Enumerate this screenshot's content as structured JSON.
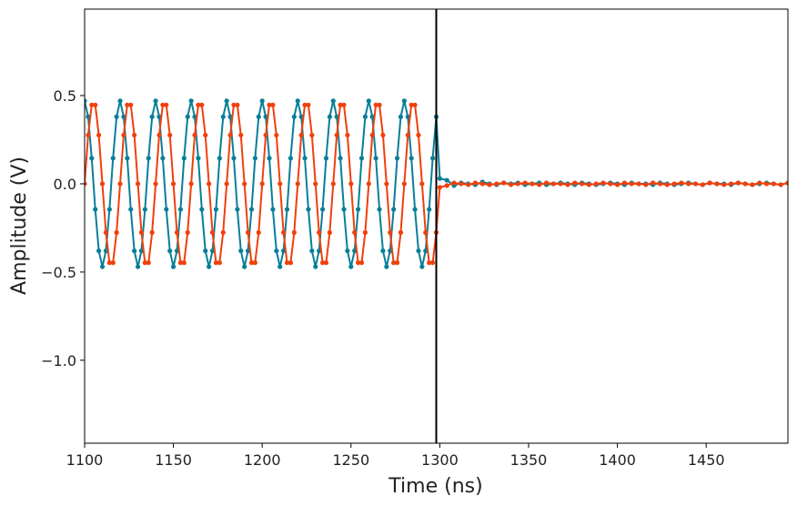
{
  "chart_data": {
    "type": "line",
    "xlabel": "Time (ns)",
    "ylabel": "Amplitude (V)",
    "xlim": [
      1100,
      1496
    ],
    "ylim": [
      -1.47,
      0.99
    ],
    "xticks": [
      1100,
      1150,
      1200,
      1250,
      1300,
      1350,
      1400,
      1450
    ],
    "yticks": [
      0.5,
      {
        "value": 0,
        "label": "0.0"
      },
      {
        "value": -0.5,
        "label": "−0.5"
      },
      {
        "value": -1,
        "label": "−1.0"
      }
    ],
    "grid": false,
    "vline": 1298,
    "x": [
      1100,
      1102,
      1104,
      1106,
      1108,
      1110,
      1112,
      1114,
      1116,
      1118,
      1120,
      1122,
      1124,
      1126,
      1128,
      1130,
      1132,
      1134,
      1136,
      1138,
      1140,
      1142,
      1144,
      1146,
      1148,
      1150,
      1152,
      1154,
      1156,
      1158,
      1160,
      1162,
      1164,
      1166,
      1168,
      1170,
      1172,
      1174,
      1176,
      1178,
      1180,
      1182,
      1184,
      1186,
      1188,
      1190,
      1192,
      1194,
      1196,
      1198,
      1200,
      1202,
      1204,
      1206,
      1208,
      1210,
      1212,
      1214,
      1216,
      1218,
      1220,
      1222,
      1224,
      1226,
      1228,
      1230,
      1232,
      1234,
      1236,
      1238,
      1240,
      1242,
      1244,
      1246,
      1248,
      1250,
      1252,
      1254,
      1256,
      1258,
      1260,
      1262,
      1264,
      1266,
      1268,
      1270,
      1272,
      1274,
      1276,
      1278,
      1280,
      1282,
      1284,
      1286,
      1288,
      1290,
      1292,
      1294,
      1296,
      1298,
      1300,
      1304,
      1308,
      1312,
      1316,
      1320,
      1324,
      1328,
      1332,
      1336,
      1340,
      1344,
      1348,
      1352,
      1356,
      1360,
      1364,
      1368,
      1372,
      1376,
      1380,
      1384,
      1388,
      1392,
      1396,
      1400,
      1404,
      1408,
      1412,
      1416,
      1420,
      1424,
      1428,
      1432,
      1436,
      1440,
      1444,
      1448,
      1452,
      1456,
      1460,
      1464,
      1468,
      1472,
      1476,
      1480,
      1484,
      1488,
      1492,
      1496
    ],
    "series": [
      {
        "color": "#087f98",
        "values": [
          0.47,
          0.38,
          0.145,
          -0.145,
          -0.38,
          -0.47,
          -0.38,
          -0.145,
          0.145,
          0.38,
          0.47,
          0.38,
          0.145,
          -0.145,
          -0.38,
          -0.47,
          -0.38,
          -0.145,
          0.145,
          0.38,
          0.47,
          0.38,
          0.145,
          -0.145,
          -0.38,
          -0.47,
          -0.38,
          -0.145,
          0.145,
          0.38,
          0.47,
          0.38,
          0.145,
          -0.145,
          -0.38,
          -0.47,
          -0.38,
          -0.145,
          0.145,
          0.38,
          0.47,
          0.38,
          0.145,
          -0.145,
          -0.38,
          -0.47,
          -0.38,
          -0.145,
          0.145,
          0.38,
          0.47,
          0.38,
          0.145,
          -0.145,
          -0.38,
          -0.47,
          -0.38,
          -0.145,
          0.145,
          0.38,
          0.47,
          0.38,
          0.145,
          -0.145,
          -0.38,
          -0.47,
          -0.38,
          -0.145,
          0.145,
          0.38,
          0.47,
          0.38,
          0.145,
          -0.145,
          -0.38,
          -0.47,
          -0.38,
          -0.145,
          0.145,
          0.38,
          0.47,
          0.38,
          0.145,
          -0.145,
          -0.38,
          -0.47,
          -0.38,
          -0.145,
          0.145,
          0.38,
          0.47,
          0.38,
          0.145,
          -0.145,
          -0.38,
          -0.47,
          -0.38,
          -0.145,
          0.145,
          0.38,
          0.03,
          0.02,
          -0.01,
          0.005,
          0,
          -0.005,
          0.01,
          0,
          -0.005,
          0.005,
          0,
          0.005,
          -0.005,
          0,
          0.005,
          -0.005,
          0,
          0.005,
          0,
          -0.005,
          0.005,
          0,
          -0.005,
          0,
          0.005,
          0,
          -0.005,
          0.005,
          0,
          0,
          -0.005,
          0.005,
          0,
          -0.005,
          0,
          0.005,
          0,
          -0.005,
          0.005,
          0,
          0,
          -0.005,
          0.005,
          0,
          -0.005,
          0,
          0.005,
          0,
          -0.005,
          0.005
        ]
      },
      {
        "color": "#f0400c",
        "values": [
          0,
          0.276,
          0.447,
          0.447,
          0.276,
          0,
          -0.276,
          -0.447,
          -0.447,
          -0.276,
          0,
          0.276,
          0.447,
          0.447,
          0.276,
          0,
          -0.276,
          -0.447,
          -0.447,
          -0.276,
          0,
          0.276,
          0.447,
          0.447,
          0.276,
          0,
          -0.276,
          -0.447,
          -0.447,
          -0.276,
          0,
          0.276,
          0.447,
          0.447,
          0.276,
          0,
          -0.276,
          -0.447,
          -0.447,
          -0.276,
          0,
          0.276,
          0.447,
          0.447,
          0.276,
          0,
          -0.276,
          -0.447,
          -0.447,
          -0.276,
          0,
          0.276,
          0.447,
          0.447,
          0.276,
          0,
          -0.276,
          -0.447,
          -0.447,
          -0.276,
          0,
          0.276,
          0.447,
          0.447,
          0.276,
          0,
          -0.276,
          -0.447,
          -0.447,
          -0.276,
          0,
          0.276,
          0.447,
          0.447,
          0.276,
          0,
          -0.276,
          -0.447,
          -0.447,
          -0.276,
          0,
          0.276,
          0.447,
          0.447,
          0.276,
          0,
          -0.276,
          -0.447,
          -0.447,
          -0.276,
          0,
          0.276,
          0.447,
          0.447,
          0.276,
          0,
          -0.276,
          -0.447,
          -0.447,
          -0.276,
          -0.02,
          -0.01,
          0.005,
          0,
          -0.005,
          0.005,
          0,
          -0.005,
          0,
          0.005,
          -0.005,
          0,
          0.005,
          0,
          -0.005,
          0.005,
          0,
          0,
          -0.005,
          0.005,
          0,
          -0.005,
          0,
          0.005,
          0,
          -0.005,
          0.005,
          0,
          0,
          -0.005,
          0.005,
          0,
          -0.005,
          0,
          0.005,
          0,
          0,
          -0.005,
          0.005,
          0,
          -0.005,
          0,
          0.005,
          0,
          -0.005,
          0.005,
          0,
          0,
          -0.005,
          0.005
        ]
      }
    ]
  }
}
